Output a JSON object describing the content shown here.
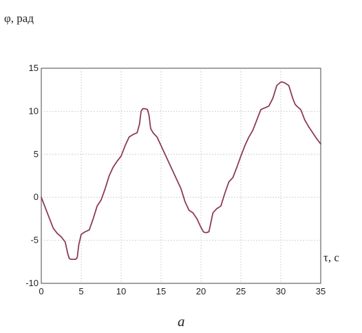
{
  "chart_data": {
    "type": "line",
    "title": "",
    "ylabel": "φ, рад",
    "xlabel": "τ, с",
    "caption": "а",
    "xlim": [
      0,
      35
    ],
    "ylim": [
      -10,
      15
    ],
    "xticks": [
      0,
      5,
      10,
      15,
      20,
      25,
      30,
      35
    ],
    "yticks": [
      -10,
      -5,
      0,
      5,
      10,
      15
    ],
    "grid": true,
    "series": [
      {
        "color": "#8b3a5a",
        "x": [
          0,
          0.5,
          1,
          1.5,
          2,
          2.5,
          3,
          3.3,
          3.5,
          3.7,
          4,
          4.3,
          4.5,
          4.7,
          5,
          5.5,
          6,
          6.5,
          7,
          7.5,
          8,
          8.5,
          9,
          9.5,
          10,
          10.5,
          11,
          11.5,
          12,
          12.3,
          12.5,
          12.7,
          13,
          13.3,
          13.5,
          13.7,
          14,
          14.5,
          15,
          15.5,
          16,
          16.5,
          17,
          17.5,
          18,
          18.5,
          19,
          19.5,
          20,
          20.3,
          20.5,
          20.7,
          21,
          21.5,
          22,
          22.2,
          22.5,
          23,
          23.5,
          24,
          24.5,
          25,
          25.5,
          26,
          26.5,
          27,
          27.5,
          28,
          28.5,
          29,
          29.5,
          30,
          30.2,
          30.5,
          31,
          31.5,
          31.8,
          32,
          32.5,
          33,
          33.5,
          34,
          34.5,
          35
        ],
        "y": [
          0,
          -1.2,
          -2.4,
          -3.6,
          -4.2,
          -4.6,
          -5.2,
          -6.5,
          -7.1,
          -7.2,
          -7.2,
          -7.2,
          -7.0,
          -5.5,
          -4.3,
          -4.0,
          -3.8,
          -2.5,
          -1.0,
          -0.3,
          1.0,
          2.5,
          3.5,
          4.2,
          4.8,
          6.0,
          7.0,
          7.3,
          7.5,
          8.5,
          10.0,
          10.3,
          10.3,
          10.2,
          9.5,
          8.0,
          7.5,
          7.0,
          6.0,
          5.0,
          4.0,
          3.0,
          2.0,
          1.0,
          -0.5,
          -1.5,
          -1.8,
          -2.5,
          -3.5,
          -4.0,
          -4.1,
          -4.1,
          -4.0,
          -1.8,
          -1.3,
          -1.2,
          -1.0,
          0.5,
          1.8,
          2.3,
          3.5,
          4.8,
          6.0,
          7.0,
          7.8,
          9.0,
          10.2,
          10.4,
          10.6,
          11.5,
          13.0,
          13.4,
          13.4,
          13.3,
          13.0,
          11.5,
          10.8,
          10.6,
          10.2,
          9.0,
          8.2,
          7.5,
          6.8,
          6.2
        ]
      }
    ]
  }
}
